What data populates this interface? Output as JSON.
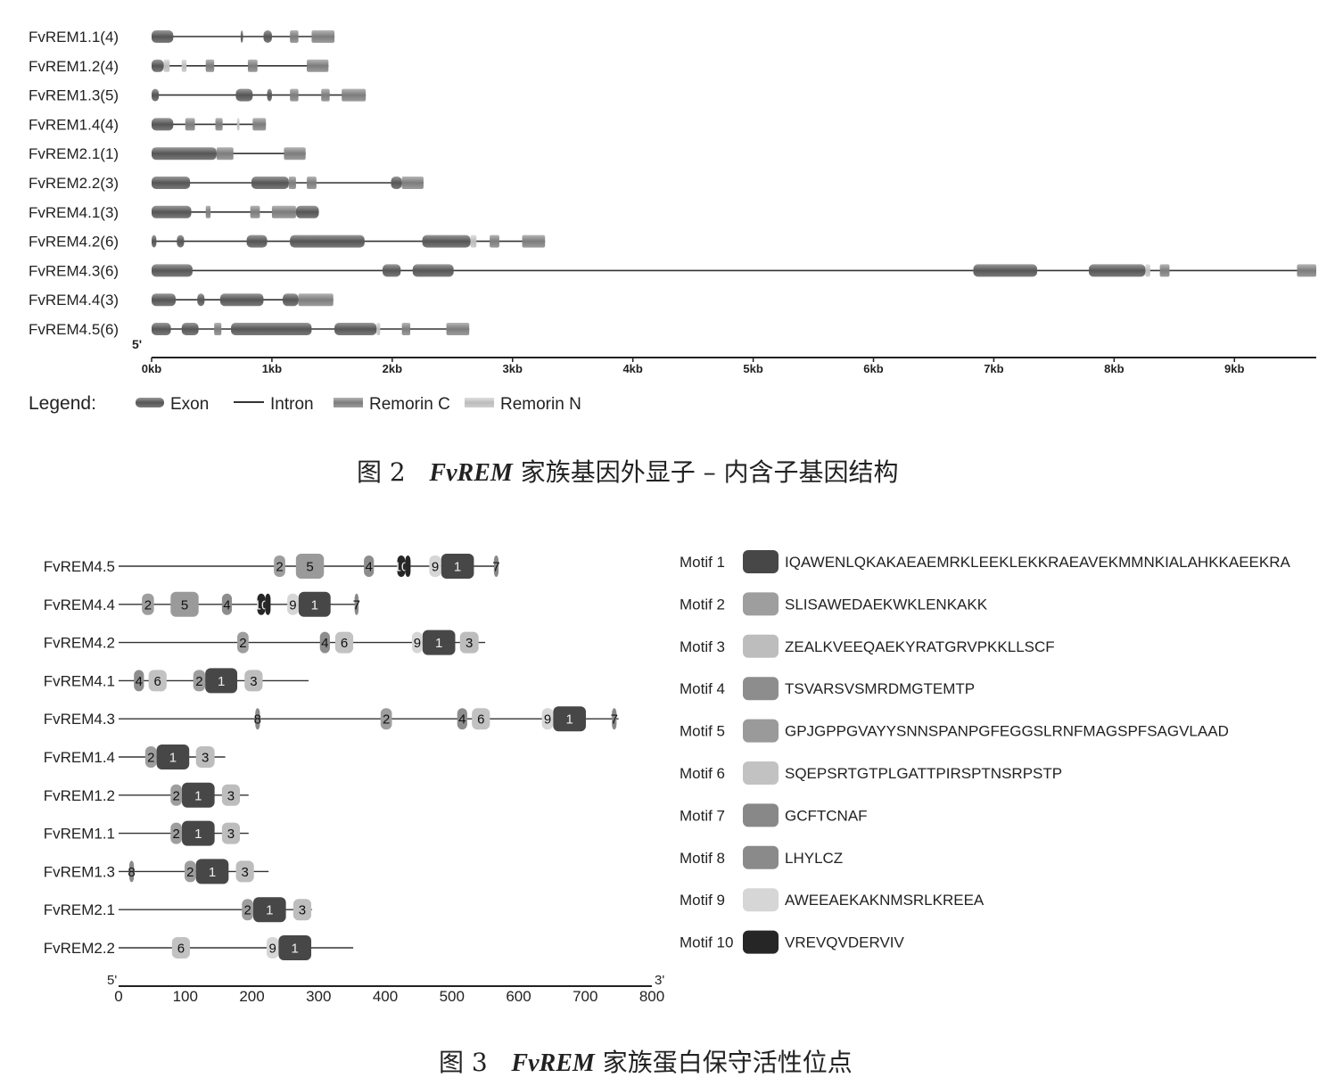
{
  "figure2": {
    "caption_prefix": "图 2",
    "caption_italic": "FvREM",
    "caption_suffix": "家族基因外显子 – 内含子基因结构",
    "five_prime_label": "5'",
    "axis_ticks": [
      "0kb",
      "1kb",
      "2kb",
      "3kb",
      "4kb",
      "5kb",
      "6kb",
      "7kb",
      "8kb",
      "9kb"
    ],
    "axis_max_kb": 9.68,
    "legend": {
      "title": "Legend:",
      "exon": "Exon",
      "intron": "Intron",
      "remorin_c": "Remorin C",
      "remorin_n": "Remorin N"
    },
    "colors": {
      "exon": "#6a6a6a",
      "remorin_c": "#8c8c8c",
      "remorin_n": "#c8c8c8",
      "intron": "#333333"
    },
    "genes": [
      {
        "label": "FvREM1.1(4)",
        "length": 1.52,
        "exons": [
          [
            0,
            0.18,
            "e"
          ],
          [
            0.74,
            0.76,
            "e"
          ],
          [
            0.93,
            1.0,
            "e"
          ],
          [
            1.15,
            1.22,
            "c"
          ],
          [
            1.33,
            1.52,
            "c"
          ]
        ]
      },
      {
        "label": "FvREM1.2(4)",
        "length": 1.47,
        "exons": [
          [
            0,
            0.1,
            "e"
          ],
          [
            0.1,
            0.15,
            "n"
          ],
          [
            0.25,
            0.29,
            "n"
          ],
          [
            0.45,
            0.52,
            "c"
          ],
          [
            0.8,
            0.88,
            "c"
          ],
          [
            1.29,
            1.47,
            "c"
          ]
        ]
      },
      {
        "label": "FvREM1.3(5)",
        "length": 1.78,
        "exons": [
          [
            0,
            0.06,
            "e"
          ],
          [
            0.7,
            0.84,
            "e"
          ],
          [
            0.96,
            1.0,
            "e"
          ],
          [
            1.15,
            1.22,
            "c"
          ],
          [
            1.41,
            1.48,
            "c"
          ],
          [
            1.58,
            1.78,
            "c"
          ]
        ]
      },
      {
        "label": "FvREM1.4(4)",
        "length": 0.95,
        "exons": [
          [
            0,
            0.18,
            "e"
          ],
          [
            0.28,
            0.36,
            "c"
          ],
          [
            0.53,
            0.59,
            "c"
          ],
          [
            0.71,
            0.73,
            "n"
          ],
          [
            0.84,
            0.95,
            "c"
          ]
        ]
      },
      {
        "label": "FvREM2.1(1)",
        "length": 1.28,
        "exons": [
          [
            0,
            0.54,
            "e"
          ],
          [
            0.54,
            0.68,
            "c"
          ],
          [
            1.1,
            1.28,
            "c"
          ]
        ]
      },
      {
        "label": "FvREM2.2(3)",
        "length": 2.26,
        "exons": [
          [
            0,
            0.32,
            "e"
          ],
          [
            0.83,
            1.14,
            "e"
          ],
          [
            1.14,
            1.2,
            "c"
          ],
          [
            1.29,
            1.37,
            "c"
          ],
          [
            1.99,
            2.08,
            "e"
          ],
          [
            2.08,
            2.26,
            "c"
          ]
        ]
      },
      {
        "label": "FvREM4.1(3)",
        "length": 1.39,
        "exons": [
          [
            0,
            0.33,
            "e"
          ],
          [
            0.45,
            0.49,
            "c"
          ],
          [
            0.82,
            0.9,
            "c"
          ],
          [
            1.0,
            1.2,
            "c"
          ],
          [
            1.2,
            1.39,
            "e"
          ]
        ]
      },
      {
        "label": "FvREM4.2(6)",
        "length": 3.27,
        "exons": [
          [
            0,
            0.04,
            "e"
          ],
          [
            0.21,
            0.27,
            "e"
          ],
          [
            0.79,
            0.96,
            "e"
          ],
          [
            1.15,
            1.77,
            "e"
          ],
          [
            2.25,
            2.65,
            "e"
          ],
          [
            2.65,
            2.7,
            "n"
          ],
          [
            2.81,
            2.89,
            "c"
          ],
          [
            3.08,
            3.27,
            "c"
          ]
        ]
      },
      {
        "label": "FvREM4.3(6)",
        "length": 9.68,
        "exons": [
          [
            0,
            0.34,
            "e"
          ],
          [
            1.92,
            2.07,
            "e"
          ],
          [
            2.17,
            2.51,
            "e"
          ],
          [
            6.83,
            7.36,
            "e"
          ],
          [
            7.79,
            8.26,
            "e"
          ],
          [
            8.26,
            8.3,
            "n"
          ],
          [
            8.38,
            8.46,
            "c"
          ],
          [
            9.52,
            9.68,
            "c"
          ]
        ]
      },
      {
        "label": "FvREM4.4(3)",
        "length": 1.51,
        "exons": [
          [
            0,
            0.2,
            "e"
          ],
          [
            0.38,
            0.44,
            "e"
          ],
          [
            0.57,
            0.93,
            "e"
          ],
          [
            1.09,
            1.22,
            "e"
          ],
          [
            1.22,
            1.51,
            "c"
          ]
        ]
      },
      {
        "label": "FvREM4.5(6)",
        "length": 2.64,
        "exons": [
          [
            0,
            0.16,
            "e"
          ],
          [
            0.25,
            0.39,
            "e"
          ],
          [
            0.52,
            0.58,
            "c"
          ],
          [
            0.66,
            1.33,
            "e"
          ],
          [
            1.52,
            1.87,
            "e"
          ],
          [
            1.87,
            1.9,
            "n"
          ],
          [
            2.08,
            2.15,
            "c"
          ],
          [
            2.45,
            2.64,
            "c"
          ]
        ]
      }
    ]
  },
  "figure3": {
    "caption_prefix": "图 3",
    "caption_italic": "FvREM",
    "caption_suffix": "家族蛋白保守活性位点",
    "five_prime_label": "5'",
    "three_prime_label": "3'",
    "axis_ticks": [
      "0",
      "100",
      "200",
      "300",
      "400",
      "500",
      "600",
      "700",
      "800"
    ],
    "axis_max": 800,
    "motif_colors": {
      "1": "#474747",
      "2": "#9e9e9e",
      "3": "#bdbdbd",
      "4": "#8d8d8d",
      "5": "#9a9a9a",
      "6": "#c2c2c2",
      "7": "#888888",
      "8": "#8a8a8a",
      "9": "#d6d6d6",
      "10": "#262626"
    },
    "motif_legend": [
      {
        "name": "Motif 1",
        "seq": "IQAWENLQKAKAEAEMRKLEEKLEKKRAEAVEKMMNKIALAHKKAEEKRA",
        "id": "1"
      },
      {
        "name": "Motif 2",
        "seq": "SLISAWEDAEKWKLENKAKK",
        "id": "2"
      },
      {
        "name": "Motif 3",
        "seq": "ZEALKVEEQAEKYRATGRVPKKLLSCF",
        "id": "3"
      },
      {
        "name": "Motif 4",
        "seq": "TSVARSVSMRDMGTEMTP",
        "id": "4"
      },
      {
        "name": "Motif 5",
        "seq": "GPJGPPGVAYYSNNSPANPGFEGGSLRNFMAGSPFSAGVLAAD",
        "id": "5"
      },
      {
        "name": "Motif 6",
        "seq": "SQEPSRTGTPLGATTPIRSPTNSRPSTP",
        "id": "6"
      },
      {
        "name": "Motif 7",
        "seq": "GCFTCNAF",
        "id": "7"
      },
      {
        "name": "Motif 8",
        "seq": "LHYLCZ",
        "id": "8"
      },
      {
        "name": "Motif 9",
        "seq": "AWEEAEKAKNMSRLKREEA",
        "id": "9"
      },
      {
        "name": "Motif 10",
        "seq": "VREVQVDERVIV",
        "id": "10"
      }
    ],
    "proteins": [
      {
        "label": "FvREM4.5",
        "length": 570,
        "motifs": [
          [
            233,
            250,
            "2"
          ],
          [
            266,
            308,
            "5"
          ],
          [
            368,
            383,
            "4"
          ],
          [
            418,
            430,
            "10"
          ],
          [
            430,
            438,
            "10",
            ""
          ],
          [
            466,
            484,
            "9"
          ],
          [
            484,
            533,
            "1"
          ],
          [
            563,
            570,
            "7"
          ]
        ]
      },
      {
        "label": "FvREM4.4",
        "length": 360,
        "motifs": [
          [
            35,
            53,
            "2"
          ],
          [
            78,
            120,
            "5"
          ],
          [
            155,
            170,
            "4"
          ],
          [
            208,
            220,
            "10"
          ],
          [
            220,
            228,
            "10",
            ""
          ],
          [
            253,
            270,
            "9"
          ],
          [
            270,
            318,
            "1"
          ],
          [
            354,
            360,
            "7"
          ]
        ]
      },
      {
        "label": "FvREM4.2",
        "length": 550,
        "motifs": [
          [
            178,
            195,
            "2"
          ],
          [
            302,
            317,
            "4"
          ],
          [
            325,
            352,
            "6"
          ],
          [
            440,
            456,
            "9"
          ],
          [
            456,
            505,
            "1"
          ],
          [
            512,
            540,
            "3"
          ]
        ]
      },
      {
        "label": "FvREM4.1",
        "length": 285,
        "motifs": [
          [
            23,
            38,
            "4"
          ],
          [
            45,
            72,
            "6"
          ],
          [
            112,
            130,
            "2"
          ],
          [
            130,
            178,
            "1"
          ],
          [
            189,
            216,
            "3"
          ]
        ]
      },
      {
        "label": "FvREM4.3",
        "length": 750,
        "motifs": [
          [
            205,
            212,
            "8"
          ],
          [
            393,
            410,
            "2"
          ],
          [
            508,
            523,
            "4"
          ],
          [
            530,
            557,
            "6"
          ],
          [
            635,
            652,
            "9"
          ],
          [
            652,
            701,
            "1"
          ],
          [
            740,
            747,
            "7"
          ]
        ]
      },
      {
        "label": "FvREM1.4",
        "length": 160,
        "motifs": [
          [
            40,
            57,
            "2"
          ],
          [
            57,
            106,
            "1"
          ],
          [
            116,
            144,
            "3"
          ]
        ]
      },
      {
        "label": "FvREM1.2",
        "length": 195,
        "motifs": [
          [
            78,
            95,
            "2"
          ],
          [
            95,
            144,
            "1"
          ],
          [
            155,
            182,
            "3"
          ]
        ]
      },
      {
        "label": "FvREM1.1",
        "length": 195,
        "motifs": [
          [
            78,
            95,
            "2"
          ],
          [
            95,
            144,
            "1"
          ],
          [
            155,
            182,
            "3"
          ]
        ]
      },
      {
        "label": "FvREM1.3",
        "length": 225,
        "motifs": [
          [
            16,
            23,
            "8"
          ],
          [
            99,
            116,
            "2"
          ],
          [
            116,
            165,
            "1"
          ],
          [
            176,
            203,
            "3"
          ]
        ]
      },
      {
        "label": "FvREM2.1",
        "length": 290,
        "motifs": [
          [
            185,
            202,
            "2"
          ],
          [
            202,
            251,
            "1"
          ],
          [
            262,
            289,
            "3"
          ]
        ]
      },
      {
        "label": "FvREM2.2",
        "length": 352,
        "motifs": [
          [
            80,
            107,
            "6"
          ],
          [
            222,
            240,
            "9"
          ],
          [
            240,
            289,
            "1"
          ]
        ]
      }
    ]
  }
}
